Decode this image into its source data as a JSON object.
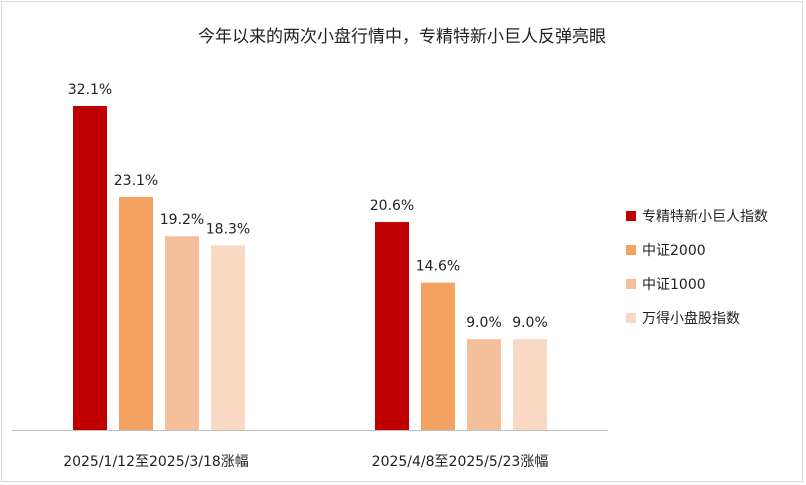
{
  "chart_data": {
    "type": "bar",
    "title": "今年以来的两次小盘行情中，专精特新小巨人反弹亮眼",
    "categories": [
      "2025/1/12至2025/3/18涨幅",
      "2025/4/8至2025/5/23涨幅"
    ],
    "series": [
      {
        "name": "专精特新小巨人指数",
        "color": "#c00000",
        "values": [
          32.1,
          20.6
        ],
        "labels": [
          "32.1%",
          "20.6%"
        ]
      },
      {
        "name": "中证2000",
        "color": "#f4a261",
        "values": [
          23.1,
          14.6
        ],
        "labels": [
          "23.1%",
          "14.6%"
        ]
      },
      {
        "name": "中证1000",
        "color": "#f6bf9b",
        "values": [
          19.2,
          9.0
        ],
        "labels": [
          "19.2%",
          "9.0%"
        ]
      },
      {
        "name": "万得小盘股指数",
        "color": "#fad9c4",
        "values": [
          18.3,
          9.0
        ],
        "labels": [
          "18.3%",
          "9.0%"
        ]
      }
    ],
    "ylim": [
      0,
      32.1
    ],
    "grid": false,
    "legend": "right"
  }
}
